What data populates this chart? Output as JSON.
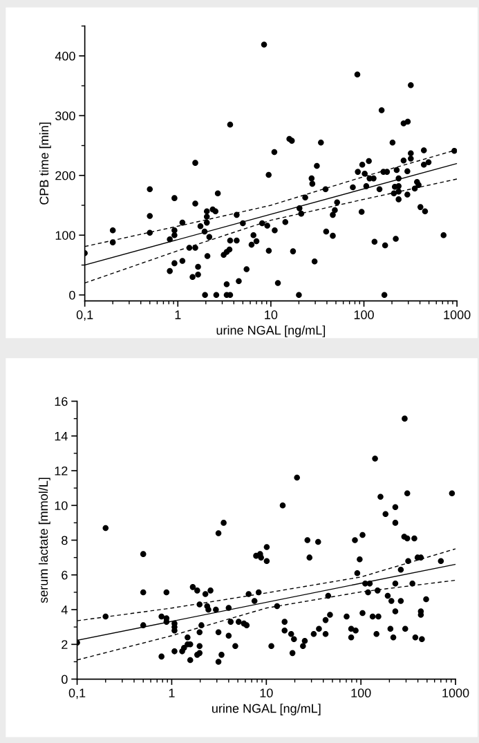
{
  "chart_data": [
    {
      "type": "scatter",
      "xlabel": "urine NGAL [ng/mL]",
      "ylabel": "CPB time [min]",
      "log": "x",
      "grid": false,
      "legend": false,
      "xlim": [
        0.1,
        1000
      ],
      "xticks": [
        {
          "value": 0.1,
          "label": "0,1"
        },
        1,
        10,
        100,
        1000
      ],
      "ylim": [
        -10,
        450
      ],
      "yticks": [
        0,
        100,
        200,
        300,
        400
      ],
      "series": [
        {
          "marker": "circle",
          "color": "#000000",
          "x": [
            0.1,
            0.2,
            0.2,
            0.5,
            0.5,
            0.5,
            0.82,
            0.82,
            0.92,
            0.92,
            0.92,
            0.92,
            1.12,
            1.12,
            1.33,
            1.44,
            1.54,
            1.54,
            1.54,
            1.65,
            1.65,
            1.75,
            1.94,
            1.96,
            2.05,
            2.05,
            2.05,
            2.08,
            2.18,
            2.37,
            2.54,
            2.59,
            2.69,
            3.11,
            3.35,
            3.35,
            3.35,
            3.59,
            3.65,
            3.65,
            3.65,
            4.29,
            4.29,
            4.52,
            5.0,
            5.48,
            6.2,
            6.5,
            7.0,
            8.06,
            8.45,
            9.15,
            9.47,
            9.5,
            10.9,
            11,
            11.9,
            14.3,
            15.8,
            16.8,
            17.3,
            20,
            20.3,
            21.2,
            23.4,
            27.4,
            27.9,
            29.5,
            31.2,
            34.5,
            38.7,
            39.3,
            46.3,
            46.3,
            48.7,
            51.5,
            76,
            85,
            86,
            94.5,
            96,
            102,
            106,
            113,
            115,
            127,
            130,
            147,
            155,
            162,
            166,
            169,
            177,
            203,
            210,
            220,
            215,
            225,
            236,
            236,
            236,
            236,
            267,
            267,
            296,
            319,
            319,
            319,
            293,
            293,
            352,
            372,
            387,
            405,
            441,
            441,
            454,
            495,
            718,
            937
          ],
          "values": [
            70,
            108,
            88,
            177,
            132,
            104,
            40,
            93,
            162,
            108,
            100,
            53,
            121,
            57,
            79,
            30,
            221,
            153,
            79,
            47,
            34,
            115,
            106,
            0,
            140,
            131,
            121,
            65,
            97,
            143,
            140,
            0,
            170,
            67,
            72,
            18,
            0,
            76,
            0,
            285,
            91,
            134,
            91,
            23,
            120,
            43,
            84,
            100,
            90,
            120,
            419,
            116,
            201,
            74,
            239,
            108,
            20,
            122,
            261,
            258,
            73,
            0,
            145,
            136,
            163,
            195,
            186,
            56,
            216,
            255,
            177,
            106,
            99,
            134,
            142,
            155,
            180,
            369,
            206,
            139,
            218,
            203,
            182,
            224,
            195,
            195,
            89,
            177,
            309,
            206,
            0,
            83,
            206,
            255,
            170,
            94,
            181,
            209,
            195,
            182,
            173,
            160,
            225,
            287,
            290,
            351,
            237,
            228,
            207,
            168,
            178,
            189,
            184,
            147,
            242,
            218,
            140,
            222,
            100,
            241
          ]
        },
        {
          "type": "line",
          "line_style": "solid",
          "color": "#000000",
          "x": [
            0.1,
            1000
          ],
          "values": [
            50,
            220
          ]
        },
        {
          "type": "line",
          "line_style": "dashed",
          "color": "#000000",
          "x": [
            0.1,
            1,
            10,
            100,
            1000
          ],
          "values": [
            81,
            115,
            150,
            198,
            243
          ]
        },
        {
          "type": "line",
          "line_style": "dashed",
          "color": "#000000",
          "x": [
            0.1,
            1,
            10,
            100,
            1000
          ],
          "values": [
            20,
            74,
            125,
            160,
            194
          ]
        }
      ]
    },
    {
      "type": "scatter",
      "xlabel": "urine NGAL [ng/mL]",
      "ylabel": "serum lactate [mmol/L]",
      "log": "x",
      "grid": false,
      "legend": false,
      "xlim": [
        0.1,
        1000
      ],
      "xticks": [
        {
          "value": 0.1,
          "label": "0,1"
        },
        1,
        10,
        100,
        1000
      ],
      "ylim": [
        0,
        16
      ],
      "yticks": [
        0,
        2,
        4,
        6,
        8,
        10,
        12,
        14,
        16
      ],
      "series": [
        {
          "marker": "circle",
          "color": "#000000",
          "x": [
            0.1,
            0.2,
            0.2,
            0.5,
            0.5,
            0.5,
            0.88,
            0.78,
            0.78,
            0.88,
            0.88,
            1.07,
            1.07,
            1.07,
            1.07,
            1.29,
            1.35,
            1.47,
            1.47,
            1.57,
            1.57,
            1.67,
            1.86,
            1.86,
            1.97,
            1.97,
            1.97,
            1.97,
            2.06,
            2.27,
            2.37,
            2.44,
            2.57,
            2.93,
            3.12,
            3.12,
            3.12,
            3.36,
            3.54,
            4.0,
            4.0,
            4.2,
            4.7,
            5.1,
            5.8,
            6.2,
            6.5,
            7.5,
            7.8,
            8.3,
            8.6,
            8.8,
            10.1,
            10.1,
            11.3,
            13,
            14.9,
            15.6,
            15.6,
            18.3,
            18.9,
            19.6,
            21.1,
            24.4,
            25.5,
            27.2,
            28.6,
            31.7,
            35.3,
            36,
            42.3,
            42.3,
            45.1,
            47.1,
            70.6,
            78.9,
            78.9,
            86.4,
            88,
            91.5,
            97,
            104,
            104,
            111,
            119,
            124,
            133,
            141,
            150,
            146,
            153,
            161,
            182,
            192,
            205,
            210,
            220,
            231,
            231,
            231,
            231,
            264,
            264,
            287,
            290,
            294,
            309,
            309,
            316,
            350,
            367,
            376,
            397,
            430,
            430,
            430,
            441,
            489,
            700,
            917
          ],
          "values": [
            2.1,
            8.7,
            3.6,
            7.2,
            5.0,
            3.1,
            5.0,
            3.6,
            1.3,
            3.5,
            3.3,
            3.2,
            3.0,
            2.8,
            1.6,
            1.6,
            1.8,
            2.4,
            2.0,
            2.0,
            1.1,
            5.3,
            5.1,
            1.4,
            4.3,
            2.7,
            1.9,
            1.5,
            3.1,
            4.9,
            4.2,
            4.0,
            5.1,
            4.0,
            8.4,
            2.7,
            1.0,
            1.4,
            9.0,
            4.1,
            2.5,
            3.3,
            1.9,
            3.3,
            3.2,
            3.1,
            4.9,
            4.5,
            7.1,
            5.0,
            7.2,
            7.0,
            7.6,
            6.8,
            1.9,
            4.2,
            10.0,
            3.3,
            2.8,
            2.6,
            1.5,
            2.3,
            11.6,
            1.9,
            2.2,
            8.0,
            7.0,
            2.6,
            7.9,
            2.9,
            3.4,
            2.6,
            4.8,
            3.7,
            3.6,
            2.9,
            2.4,
            8.0,
            2.8,
            6.1,
            6.9,
            8.3,
            3.8,
            5.5,
            5.0,
            5.5,
            3.6,
            12.7,
            5.1,
            2.6,
            3.6,
            10.5,
            9.5,
            4.8,
            2.9,
            4.5,
            2.4,
            9.9,
            9.0,
            5.5,
            3.9,
            6.3,
            4.5,
            8.2,
            15.0,
            2.9,
            10.7,
            8.1,
            6.8,
            5.5,
            8.1,
            2.4,
            7.0,
            7.0,
            3.9,
            3.7,
            2.3,
            4.6,
            6.8,
            10.7
          ]
        },
        {
          "type": "line",
          "line_style": "solid",
          "color": "#000000",
          "x": [
            0.1,
            1000
          ],
          "values": [
            2.23,
            6.61
          ]
        },
        {
          "type": "line",
          "line_style": "dashed",
          "color": "#000000",
          "x": [
            0.1,
            1,
            10,
            100,
            1000
          ],
          "values": [
            3.36,
            4.09,
            4.96,
            5.88,
            7.5
          ]
        },
        {
          "type": "line",
          "line_style": "dashed",
          "color": "#000000",
          "x": [
            0.1,
            1,
            10,
            100,
            1000
          ],
          "values": [
            1.1,
            2.5,
            4.09,
            5.02,
            5.69
          ]
        }
      ]
    }
  ]
}
